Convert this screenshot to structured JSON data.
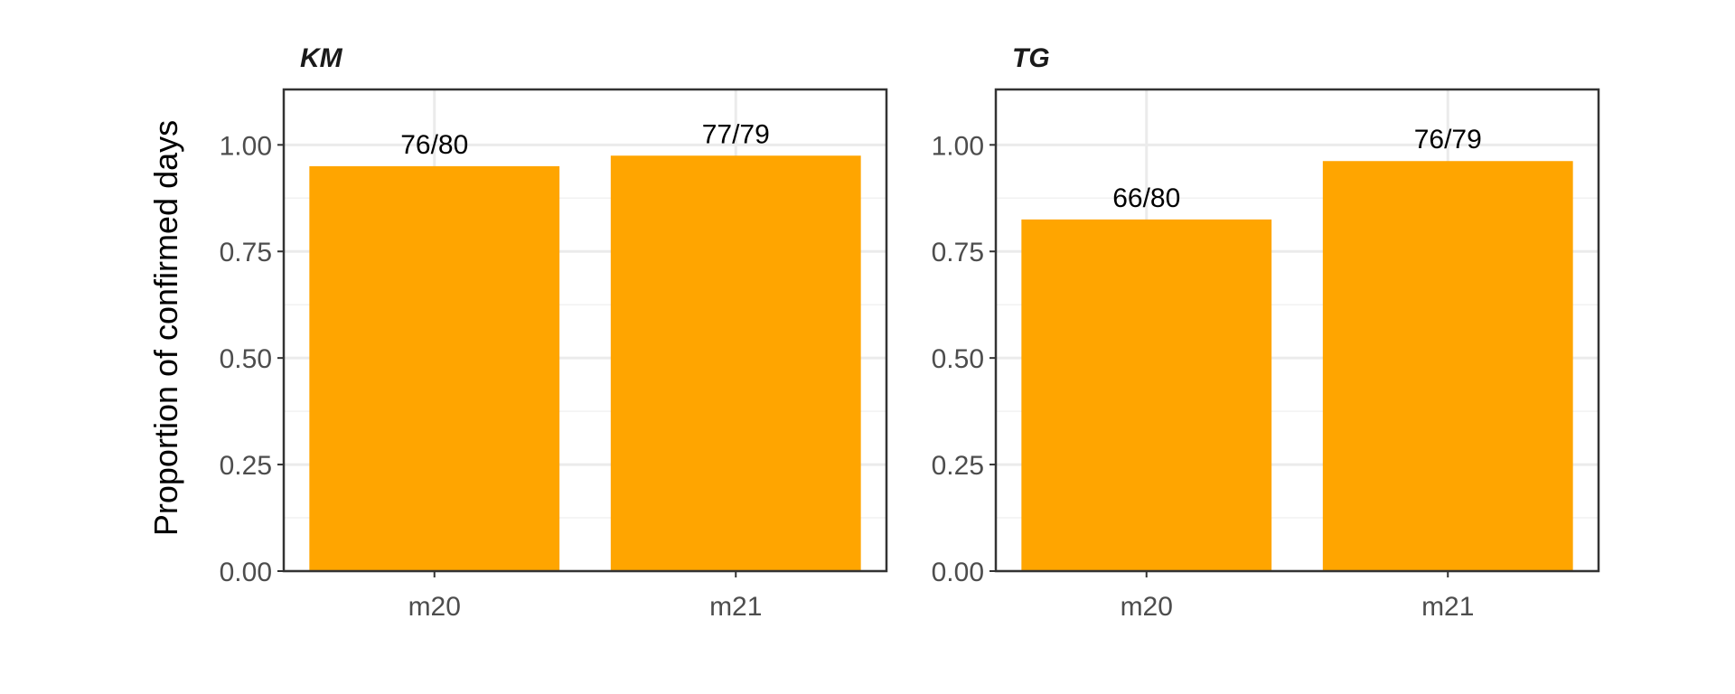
{
  "chart_data": {
    "type": "bar",
    "ylabel": "Proportion of confirmed days",
    "ylim": [
      0,
      1.13
    ],
    "yticks": [
      "0.00",
      "0.25",
      "0.50",
      "0.75",
      "1.00"
    ],
    "ytick_values": [
      0,
      0.25,
      0.5,
      0.75,
      1.0
    ],
    "categories": [
      "m20",
      "m21"
    ],
    "bar_color": "#FFA500",
    "grid": true,
    "panels": [
      {
        "title": "KM",
        "values": [
          0.95,
          0.9747
        ],
        "labels": [
          "76/80",
          "77/79"
        ]
      },
      {
        "title": "TG",
        "values": [
          0.825,
          0.962
        ],
        "labels": [
          "66/80",
          "76/79"
        ]
      }
    ]
  }
}
